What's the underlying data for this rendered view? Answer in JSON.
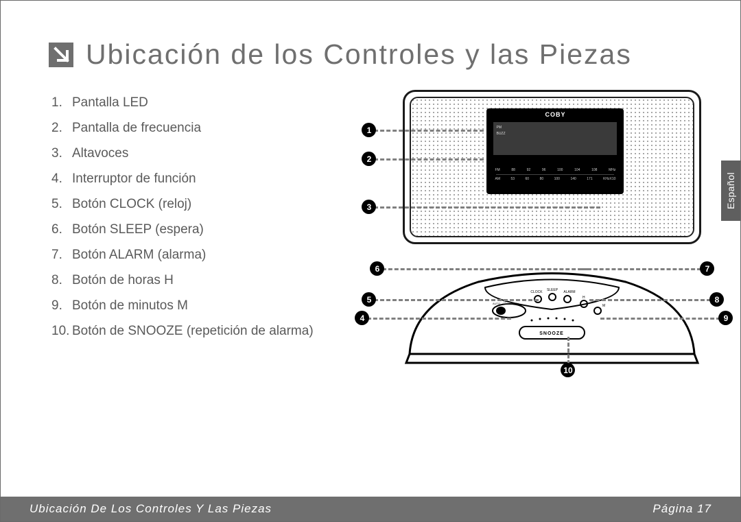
{
  "title": "Ubicación de los Controles y las Piezas",
  "list": [
    {
      "n": "1.",
      "label": "Pantalla LED"
    },
    {
      "n": "2.",
      "label": "Pantalla de frecuencia"
    },
    {
      "n": "3.",
      "label": "Altavoces"
    },
    {
      "n": "4.",
      "label": "Interruptor de función"
    },
    {
      "n": "5.",
      "label": "Botón CLOCK (reloj)"
    },
    {
      "n": "6.",
      "label": "Botón SLEEP (espera)"
    },
    {
      "n": "7.",
      "label": "Botón ALARM (alarma)"
    },
    {
      "n": "8.",
      "label": "Botón de horas H"
    },
    {
      "n": "9.",
      "label": "Botón de minutos M"
    },
    {
      "n": "10.",
      "label": "Botón de SNOOZE (repetición de alarma)"
    }
  ],
  "brand": "COBY",
  "led_labels": {
    "pm": "PM",
    "buzz": "BUZZ"
  },
  "freq": {
    "fm": [
      "FM",
      "88",
      "92",
      "96",
      "100",
      "104",
      "108",
      "MHz"
    ],
    "am": [
      "AM",
      "53",
      "60",
      "80",
      "100",
      "140",
      "171",
      "KHzX10"
    ]
  },
  "top_labels": {
    "clock": "CLOCK",
    "sleep": "SLEEP",
    "alarm": "ALARM",
    "auto": "AUTO",
    "off": "OFF",
    "on": "ON",
    "h": "H",
    "time": "TIME",
    "m": "M",
    "snooze": "SNOOZE"
  },
  "markers": [
    "1",
    "2",
    "3",
    "4",
    "5",
    "6",
    "7",
    "8",
    "9",
    "10"
  ],
  "side_tab": "Español",
  "footer_left": "Ubicación De Los Controles Y Las Piezas",
  "footer_right": "Página 17",
  "colors": {
    "title": "#6f6f6f",
    "text": "#5a5a5a",
    "footer_bg": "#6f6f6f",
    "dash": "#808080",
    "marker_bg": "#000000",
    "side_tab_bg": "#5f5f5f"
  }
}
